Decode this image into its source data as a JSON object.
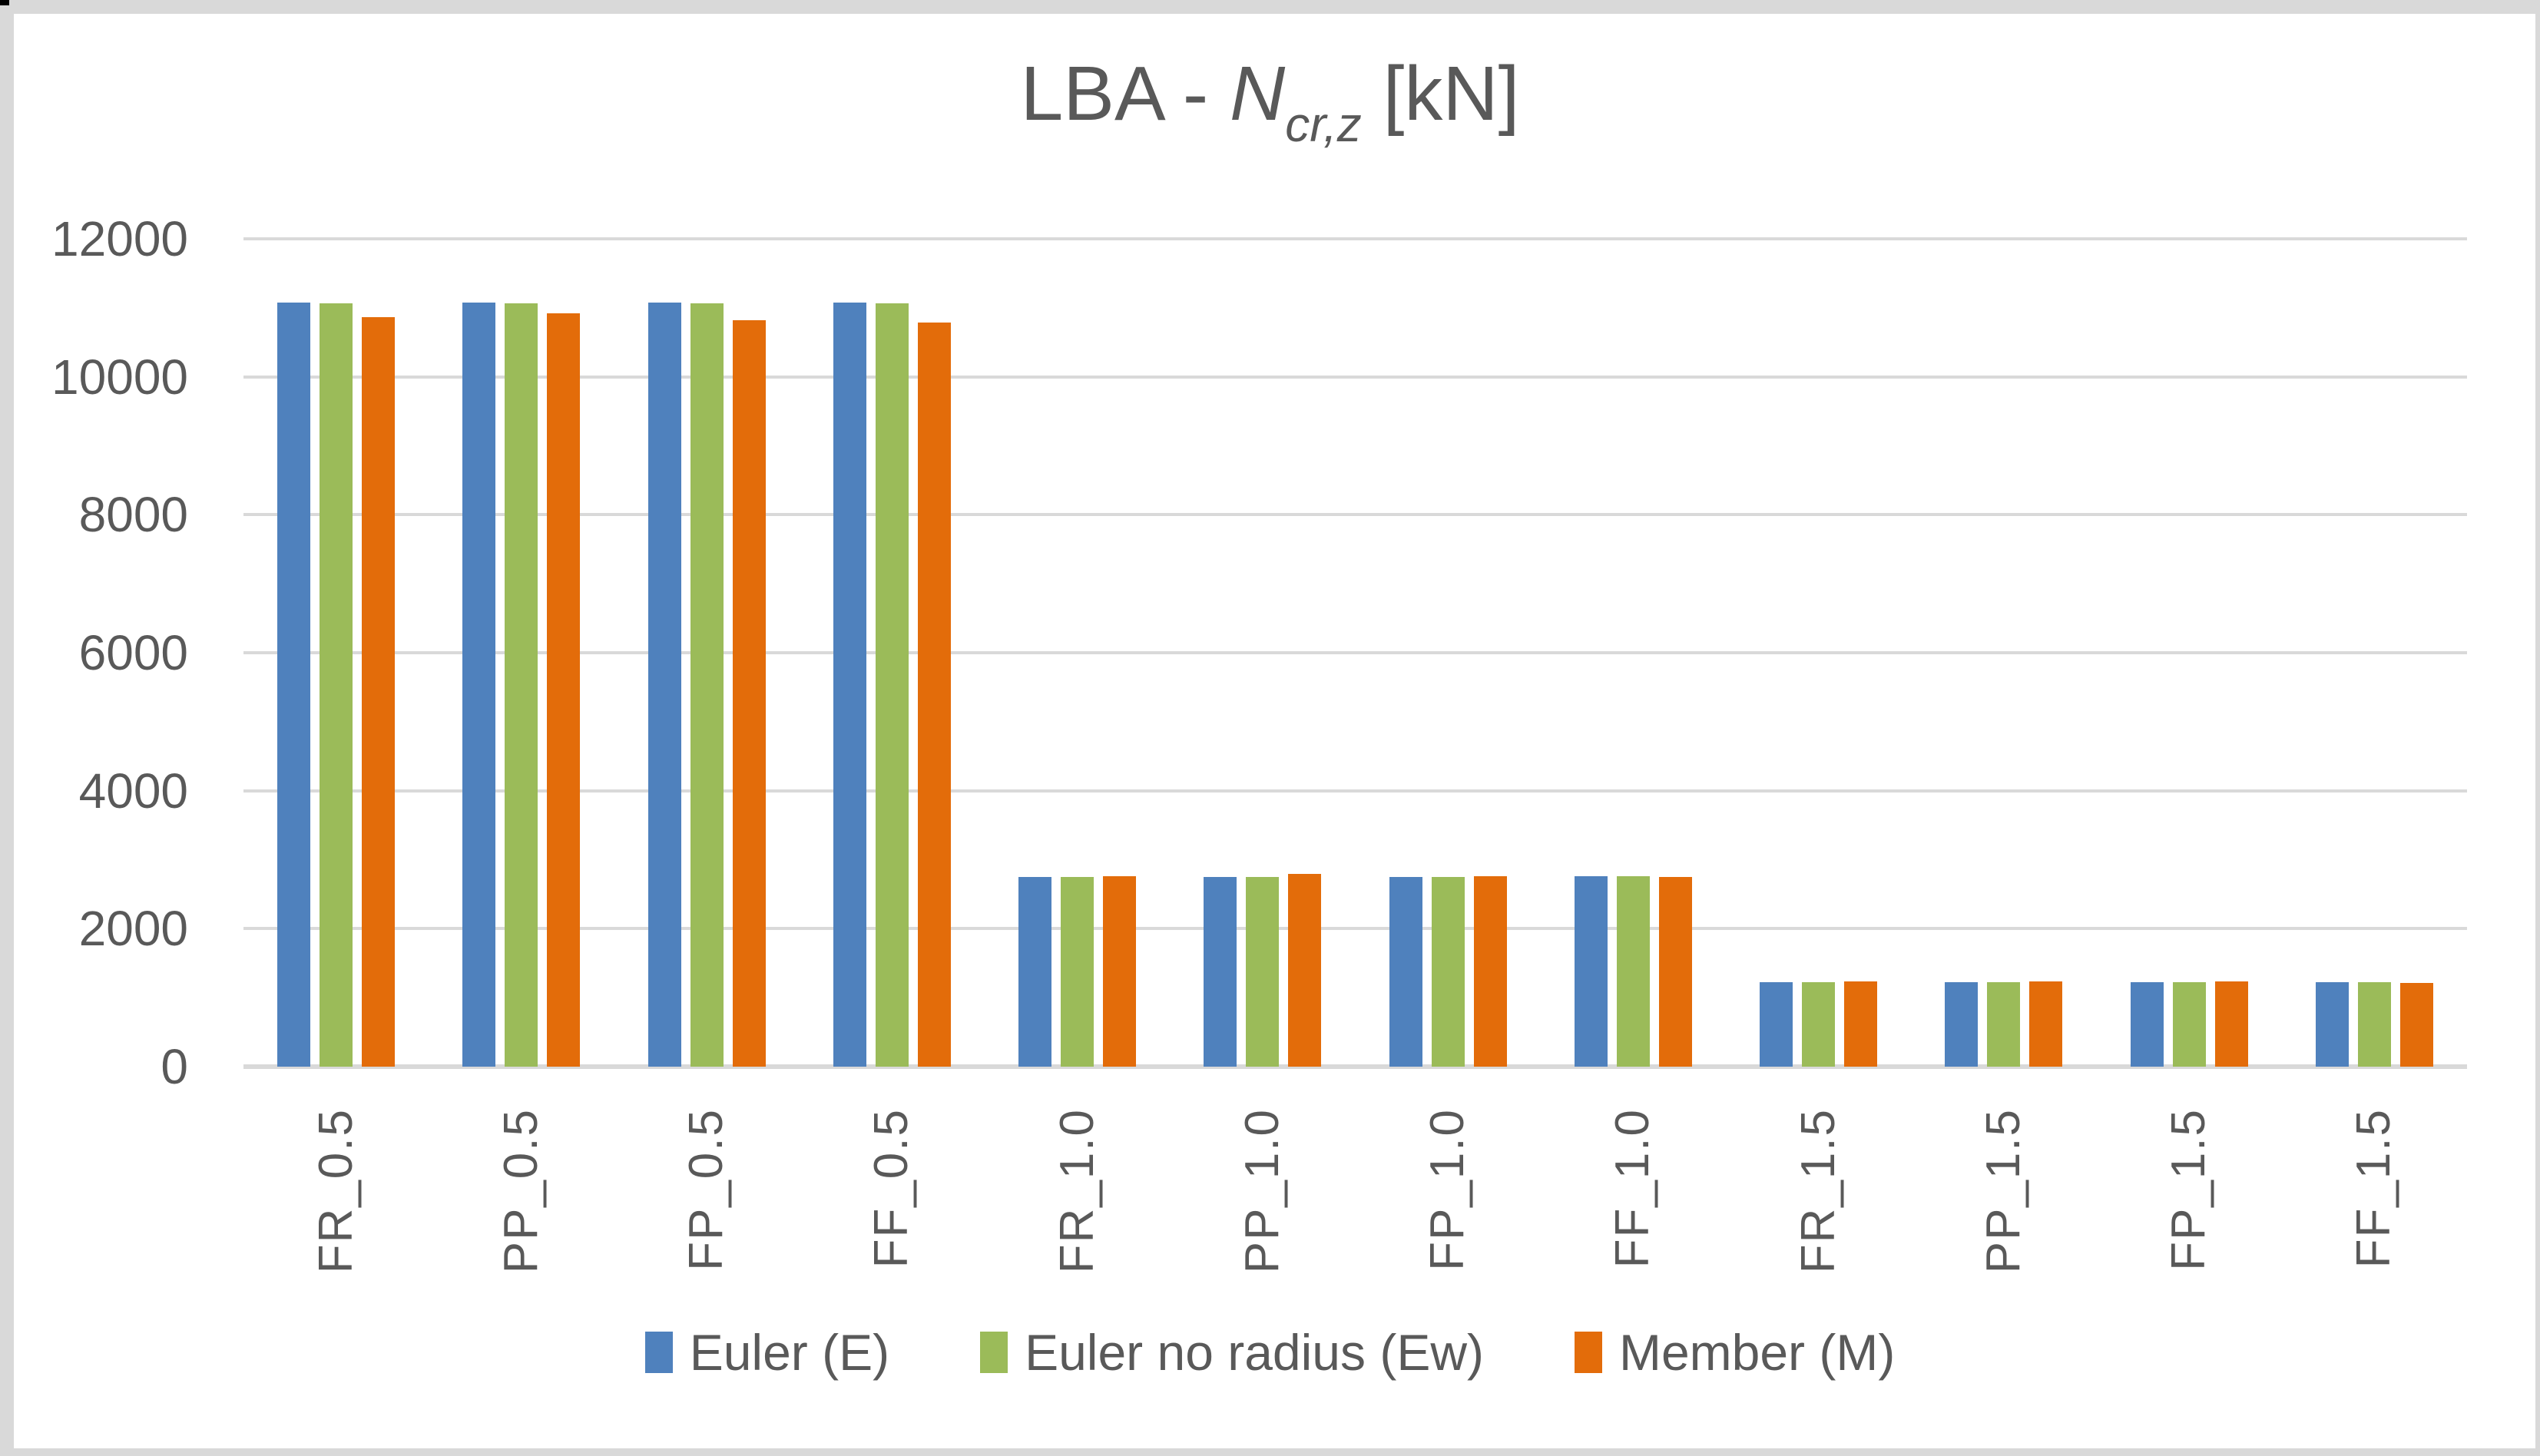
{
  "chart_data": {
    "type": "bar",
    "title": "LBA - Ncr,z [kN]",
    "title_parts": {
      "prefix": "LBA - ",
      "variable": "N",
      "subscript": "cr,z",
      "suffix": " [kN]"
    },
    "categories": [
      "FR_0.5",
      "PP_0.5",
      "FP_0.5",
      "FF_0.5",
      "FR_1.0",
      "PP_1.0",
      "FP_1.0",
      "FF_1.0",
      "FR_1.5",
      "PP_1.5",
      "FP_1.5",
      "FF_1.5"
    ],
    "series": [
      {
        "name": "Euler (E)",
        "color": "#4F81BD",
        "values": [
          11080,
          11080,
          11080,
          11080,
          2755,
          2755,
          2755,
          2760,
          1230,
          1230,
          1230,
          1225
        ]
      },
      {
        "name": "Euler no radius (Ew)",
        "color": "#9BBB59",
        "values": [
          11070,
          11070,
          11070,
          11070,
          2755,
          2755,
          2755,
          2760,
          1230,
          1230,
          1230,
          1225
        ]
      },
      {
        "name": "Member (M)",
        "color": "#E36C0A",
        "values": [
          10860,
          10920,
          10820,
          10790,
          2760,
          2790,
          2760,
          2745,
          1237,
          1237,
          1237,
          1210
        ]
      }
    ],
    "xlabel": "",
    "ylabel": "",
    "ylim": [
      0,
      12000
    ],
    "ytick_step": 2000,
    "yticks": [
      0,
      2000,
      4000,
      6000,
      8000,
      10000,
      12000
    ],
    "grid": true,
    "x_label_rotation": -90,
    "legend_position": "bottom"
  },
  "colors": {
    "text": "#595959",
    "gridline": "#D9D9D9",
    "baseline": "#D9D9D9",
    "frame": "#D9D9D9",
    "background": "#FFFFFF"
  }
}
